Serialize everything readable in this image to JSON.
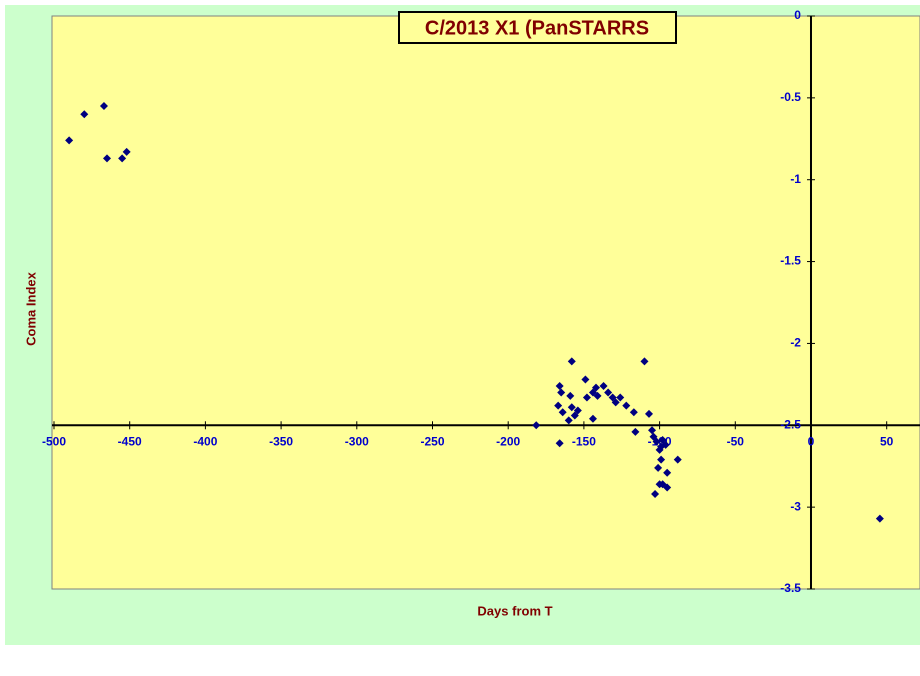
{
  "chart_data": {
    "type": "scatter",
    "title": "C/2013 X1 (PanSTARRS",
    "x_label": "Days from T",
    "y_label": "Coma Index",
    "x": [
      -490,
      -480,
      -467,
      -465,
      -455,
      -452,
      -181.5,
      -166,
      -158,
      -166,
      -165,
      -167,
      -164,
      -159,
      -158,
      -160,
      -156,
      -154,
      -149,
      -148,
      -144,
      -142,
      -141,
      -144,
      -137,
      -134,
      -131,
      -129,
      -126,
      -122,
      -117,
      -116,
      -110,
      -107,
      -105,
      -104,
      -102,
      -100,
      -99,
      -98,
      -96,
      -99,
      -101,
      -95,
      -100,
      -98,
      -95,
      -103,
      -88,
      45.5
    ],
    "values": [
      -0.76,
      -0.6,
      -0.55,
      -0.87,
      -0.87,
      -0.83,
      -2.5,
      -2.61,
      -2.11,
      -2.26,
      -2.3,
      -2.38,
      -2.42,
      -2.32,
      -2.39,
      -2.47,
      -2.44,
      -2.41,
      -2.22,
      -2.33,
      -2.3,
      -2.27,
      -2.32,
      -2.46,
      -2.26,
      -2.3,
      -2.33,
      -2.36,
      -2.33,
      -2.38,
      -2.42,
      -2.54,
      -2.11,
      -2.43,
      -2.53,
      -2.57,
      -2.6,
      -2.65,
      -2.63,
      -2.59,
      -2.62,
      -2.71,
      -2.76,
      -2.79,
      -2.86,
      -2.86,
      -2.88,
      -2.92,
      -2.71,
      -3.07
    ],
    "color": "#000080",
    "xlim": [
      -500,
      72
    ],
    "ylim": [
      -3.5,
      0
    ],
    "xticks": [
      -500,
      -450,
      -400,
      -350,
      -300,
      -250,
      -200,
      -150,
      -100,
      -50,
      0,
      50
    ],
    "yticks": [
      0,
      -0.5,
      -1,
      -1.5,
      -2,
      -2.5,
      -3,
      -3.5
    ],
    "x_axis_crosses": -2.5,
    "y_axis_crosses": 0
  }
}
